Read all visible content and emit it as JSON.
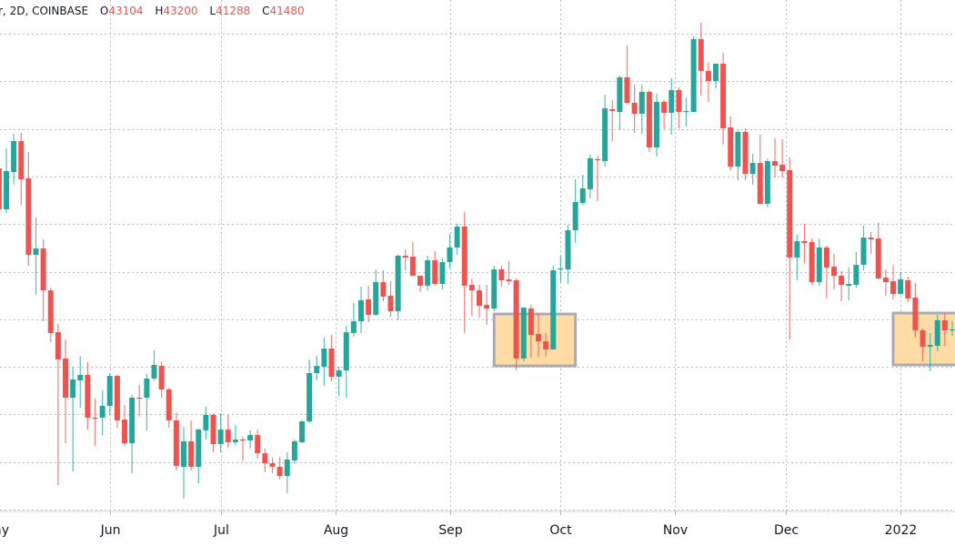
{
  "header": {
    "symbol_text": "r, 2D, COINBASE",
    "open_label": "O",
    "open_value": "43104",
    "high_label": "H",
    "high_value": "43200",
    "low_label": "L",
    "low_value": "41288",
    "close_label": "C",
    "close_value": "41480"
  },
  "chart_data": {
    "type": "candlestick",
    "interval": "2D",
    "ylim": [
      27850,
      70830
    ],
    "grid": true,
    "x_tick_labels": [
      {
        "date": "2021-05-01",
        "label": "May"
      },
      {
        "date": "2021-06-01",
        "label": "Jun"
      },
      {
        "date": "2021-07-01",
        "label": "Jul"
      },
      {
        "date": "2021-08-01",
        "label": "Aug"
      },
      {
        "date": "2021-09-01",
        "label": "Sep"
      },
      {
        "date": "2021-10-01",
        "label": "Oct"
      },
      {
        "date": "2021-11-01",
        "label": "Nov"
      },
      {
        "date": "2021-12-01",
        "label": "Dec"
      },
      {
        "date": "2022-01-01",
        "label": "2022"
      }
    ],
    "colors": {
      "up": "#26a69a",
      "down": "#ef5350",
      "grid": "#b8bbc2",
      "highlight_fill": "#ffdca6",
      "highlight_border": "#a9acb4"
    },
    "columns": [
      "date",
      "open",
      "high",
      "low",
      "close"
    ],
    "candles": [
      [
        "2021-05-02",
        56680,
        56830,
        53090,
        53240
      ],
      [
        "2021-05-04",
        53240,
        58370,
        52930,
        56450
      ],
      [
        "2021-05-06",
        56370,
        59590,
        55300,
        58980
      ],
      [
        "2021-05-08",
        58980,
        59670,
        53620,
        55760
      ],
      [
        "2021-05-10",
        55840,
        58060,
        48500,
        49410
      ],
      [
        "2021-05-12",
        49410,
        52550,
        46050,
        49950
      ],
      [
        "2021-05-14",
        49950,
        50720,
        43830,
        46430
      ],
      [
        "2021-05-16",
        46430,
        46660,
        42070,
        42840
      ],
      [
        "2021-05-18",
        42910,
        43600,
        30070,
        40620
      ],
      [
        "2021-05-20",
        40700,
        42300,
        33580,
        37410
      ],
      [
        "2021-05-22",
        37410,
        40010,
        31210,
        38940
      ],
      [
        "2021-05-24",
        38860,
        40930,
        36570,
        39320
      ],
      [
        "2021-05-26",
        39320,
        40390,
        34730,
        35730
      ],
      [
        "2021-05-28",
        35730,
        37330,
        33350,
        35650
      ],
      [
        "2021-05-30",
        35730,
        38020,
        34270,
        36720
      ],
      [
        "2021-06-01",
        36720,
        39470,
        35950,
        39240
      ],
      [
        "2021-06-03",
        39240,
        39320,
        34880,
        35500
      ],
      [
        "2021-06-05",
        35570,
        36800,
        33350,
        33580
      ],
      [
        "2021-06-07",
        33580,
        37640,
        31060,
        37410
      ],
      [
        "2021-06-09",
        37410,
        38480,
        35800,
        37330
      ],
      [
        "2021-06-11",
        37410,
        39400,
        34660,
        39020
      ],
      [
        "2021-06-13",
        39010,
        41380,
        38860,
        40160
      ],
      [
        "2021-06-15",
        40080,
        40470,
        37410,
        38100
      ],
      [
        "2021-06-17",
        38100,
        38250,
        34880,
        35500
      ],
      [
        "2021-06-19",
        35500,
        36190,
        31290,
        31670
      ],
      [
        "2021-06-21",
        31600,
        34960,
        28920,
        33740
      ],
      [
        "2021-06-23",
        33740,
        35500,
        31290,
        31600
      ],
      [
        "2021-06-25",
        31600,
        34810,
        30220,
        34730
      ],
      [
        "2021-06-27",
        34660,
        36640,
        33890,
        35960
      ],
      [
        "2021-06-29",
        35960,
        36110,
        32820,
        33510
      ],
      [
        "2021-07-01",
        33510,
        36110,
        32820,
        34730
      ],
      [
        "2021-07-03",
        34730,
        35960,
        33200,
        33660
      ],
      [
        "2021-07-05",
        33660,
        35110,
        33430,
        33890
      ],
      [
        "2021-07-07",
        33890,
        34120,
        32130,
        33810
      ],
      [
        "2021-07-09",
        33810,
        34660,
        33130,
        34270
      ],
      [
        "2021-07-11",
        34270,
        34730,
        32280,
        32740
      ],
      [
        "2021-07-13",
        32740,
        33130,
        31140,
        31900
      ],
      [
        "2021-07-15",
        31900,
        32360,
        31060,
        31600
      ],
      [
        "2021-07-17",
        31600,
        32440,
        30530,
        30830
      ],
      [
        "2021-07-19",
        30830,
        32820,
        29380,
        32210
      ],
      [
        "2021-07-21",
        32130,
        33890,
        31830,
        33740
      ],
      [
        "2021-07-23",
        33660,
        35500,
        33580,
        35420
      ],
      [
        "2021-07-25",
        35420,
        40620,
        35270,
        39470
      ],
      [
        "2021-07-27",
        39470,
        40930,
        38860,
        40080
      ],
      [
        "2021-07-29",
        40010,
        42460,
        38400,
        41540
      ],
      [
        "2021-07-31",
        41540,
        42690,
        38780,
        39170
      ],
      [
        "2021-08-02",
        39170,
        40010,
        37560,
        39700
      ],
      [
        "2021-08-04",
        39700,
        43450,
        37410,
        42910
      ],
      [
        "2021-08-06",
        42840,
        45360,
        42530,
        43830
      ],
      [
        "2021-08-08",
        43830,
        46740,
        42840,
        45590
      ],
      [
        "2021-08-10",
        45670,
        46820,
        43760,
        44370
      ],
      [
        "2021-08-12",
        44370,
        48190,
        44290,
        47120
      ],
      [
        "2021-08-14",
        47120,
        48110,
        45510,
        45900
      ],
      [
        "2021-08-16",
        45980,
        47200,
        44210,
        44670
      ],
      [
        "2021-08-18",
        44670,
        49420,
        43910,
        49340
      ],
      [
        "2021-08-20",
        49340,
        49870,
        48110,
        49190
      ],
      [
        "2021-08-22",
        49260,
        50490,
        47660,
        47660
      ],
      [
        "2021-08-24",
        47660,
        47660,
        46280,
        46820
      ],
      [
        "2021-08-26",
        46820,
        49340,
        46430,
        48960
      ],
      [
        "2021-08-28",
        48960,
        49720,
        46820,
        46970
      ],
      [
        "2021-08-30",
        46970,
        49110,
        46510,
        48800
      ],
      [
        "2021-09-01",
        48800,
        51170,
        48270,
        50030
      ],
      [
        "2021-09-03",
        50030,
        52020,
        49410,
        51790
      ],
      [
        "2021-09-05",
        51790,
        53010,
        42840,
        46820
      ],
      [
        "2021-09-07",
        46890,
        47430,
        44290,
        46430
      ],
      [
        "2021-09-09",
        46430,
        46890,
        44140,
        45130
      ],
      [
        "2021-09-11",
        45210,
        46890,
        43530,
        44900
      ],
      [
        "2021-09-13",
        44900,
        48500,
        44670,
        48190
      ],
      [
        "2021-09-15",
        48190,
        48500,
        46740,
        47270
      ],
      [
        "2021-09-17",
        47350,
        48880,
        46890,
        47200
      ],
      [
        "2021-09-19",
        47270,
        47430,
        39700,
        40700
      ],
      [
        "2021-09-21",
        40700,
        44980,
        40470,
        44980
      ],
      [
        "2021-09-23",
        44900,
        45210,
        40770,
        42690
      ],
      [
        "2021-09-25",
        42760,
        44440,
        40850,
        42150
      ],
      [
        "2021-09-27",
        42150,
        42840,
        40850,
        41460
      ],
      [
        "2021-09-29",
        41460,
        48500,
        41460,
        48120
      ],
      [
        "2021-10-01",
        48190,
        49340,
        47120,
        48270
      ],
      [
        "2021-10-03",
        48190,
        51940,
        46970,
        51480
      ],
      [
        "2021-10-05",
        51480,
        55760,
        50410,
        53850
      ],
      [
        "2021-10-07",
        53780,
        56150,
        53620,
        55000
      ],
      [
        "2021-10-09",
        54920,
        57830,
        54160,
        57520
      ],
      [
        "2021-10-11",
        57450,
        57750,
        53930,
        57370
      ],
      [
        "2021-10-13",
        57290,
        62880,
        56830,
        61730
      ],
      [
        "2021-10-15",
        61650,
        62420,
        58980,
        61500
      ],
      [
        "2021-10-17",
        61420,
        64480,
        59890,
        64330
      ],
      [
        "2021-10-19",
        64330,
        67010,
        62040,
        62190
      ],
      [
        "2021-10-21",
        62190,
        63720,
        59670,
        61270
      ],
      [
        "2021-10-23",
        61270,
        63720,
        59590,
        63110
      ],
      [
        "2021-10-25",
        63110,
        63260,
        58060,
        58440
      ],
      [
        "2021-10-27",
        58440,
        62950,
        57670,
        62270
      ],
      [
        "2021-10-29",
        62270,
        62420,
        59970,
        61350
      ],
      [
        "2021-10-31",
        61350,
        64250,
        59510,
        63260
      ],
      [
        "2021-11-02",
        63260,
        63490,
        60050,
        61420
      ],
      [
        "2021-11-04",
        61420,
        62650,
        60200,
        61500
      ],
      [
        "2021-11-06",
        61420,
        67770,
        61420,
        67540
      ],
      [
        "2021-11-08",
        67540,
        68920,
        62800,
        64870
      ],
      [
        "2021-11-10",
        64870,
        65550,
        62270,
        64020
      ],
      [
        "2021-11-12",
        64020,
        65480,
        63410,
        65480
      ],
      [
        "2021-11-14",
        65480,
        66400,
        58670,
        60050
      ],
      [
        "2021-11-16",
        60120,
        61040,
        56530,
        56830
      ],
      [
        "2021-11-18",
        56830,
        59890,
        55690,
        59740
      ],
      [
        "2021-11-20",
        59740,
        60050,
        55690,
        56220
      ],
      [
        "2021-11-22",
        56220,
        57900,
        55300,
        57140
      ],
      [
        "2021-11-24",
        57140,
        59510,
        53620,
        53700
      ],
      [
        "2021-11-26",
        53700,
        57520,
        53390,
        57290
      ],
      [
        "2021-11-28",
        57290,
        59200,
        55920,
        56910
      ],
      [
        "2021-11-30",
        56990,
        59130,
        55920,
        56450
      ],
      [
        "2021-12-02",
        56530,
        57600,
        42300,
        49190
      ],
      [
        "2021-12-04",
        49190,
        51100,
        47270,
        50560
      ],
      [
        "2021-12-06",
        50560,
        52020,
        48730,
        50410
      ],
      [
        "2021-12-08",
        50490,
        50790,
        46890,
        47120
      ],
      [
        "2021-12-10",
        47120,
        50790,
        46810,
        50030
      ],
      [
        "2021-12-12",
        50030,
        50180,
        45740,
        48340
      ],
      [
        "2021-12-14",
        48420,
        49490,
        46510,
        47660
      ],
      [
        "2021-12-16",
        47660,
        48040,
        45510,
        46890
      ],
      [
        "2021-12-18",
        46810,
        48340,
        45590,
        46970
      ],
      [
        "2021-12-20",
        46890,
        49650,
        46660,
        48570
      ],
      [
        "2021-12-22",
        48570,
        51860,
        48110,
        50870
      ],
      [
        "2021-12-24",
        50870,
        51330,
        49490,
        50720
      ],
      [
        "2021-12-26",
        50790,
        52090,
        47350,
        47430
      ],
      [
        "2021-12-28",
        47500,
        48190,
        45980,
        47120
      ],
      [
        "2021-12-30",
        47200,
        48570,
        45670,
        46130
      ],
      [
        "2022-01-01",
        46130,
        47960,
        46050,
        47350
      ],
      [
        "2022-01-03",
        47270,
        47580,
        45440,
        45740
      ],
      [
        "2022-01-05",
        45820,
        47050,
        42460,
        43070
      ],
      [
        "2022-01-07",
        43070,
        43220,
        40470,
        41690
      ],
      [
        "2022-01-09",
        41690,
        42840,
        39630,
        41840
      ],
      [
        "2022-01-11",
        41770,
        44370,
        41310,
        43910
      ],
      [
        "2022-01-13",
        43910,
        44520,
        41770,
        43070
      ],
      [
        "2022-01-15",
        43070,
        43830,
        42610,
        43150
      ]
    ],
    "highlights": [
      {
        "start": "2021-09-13",
        "end": "2021-10-05",
        "low": 40080,
        "high": 44440
      },
      {
        "start": "2021-12-30",
        "end": "2022-01-20",
        "low": 40160,
        "high": 44520
      }
    ]
  }
}
